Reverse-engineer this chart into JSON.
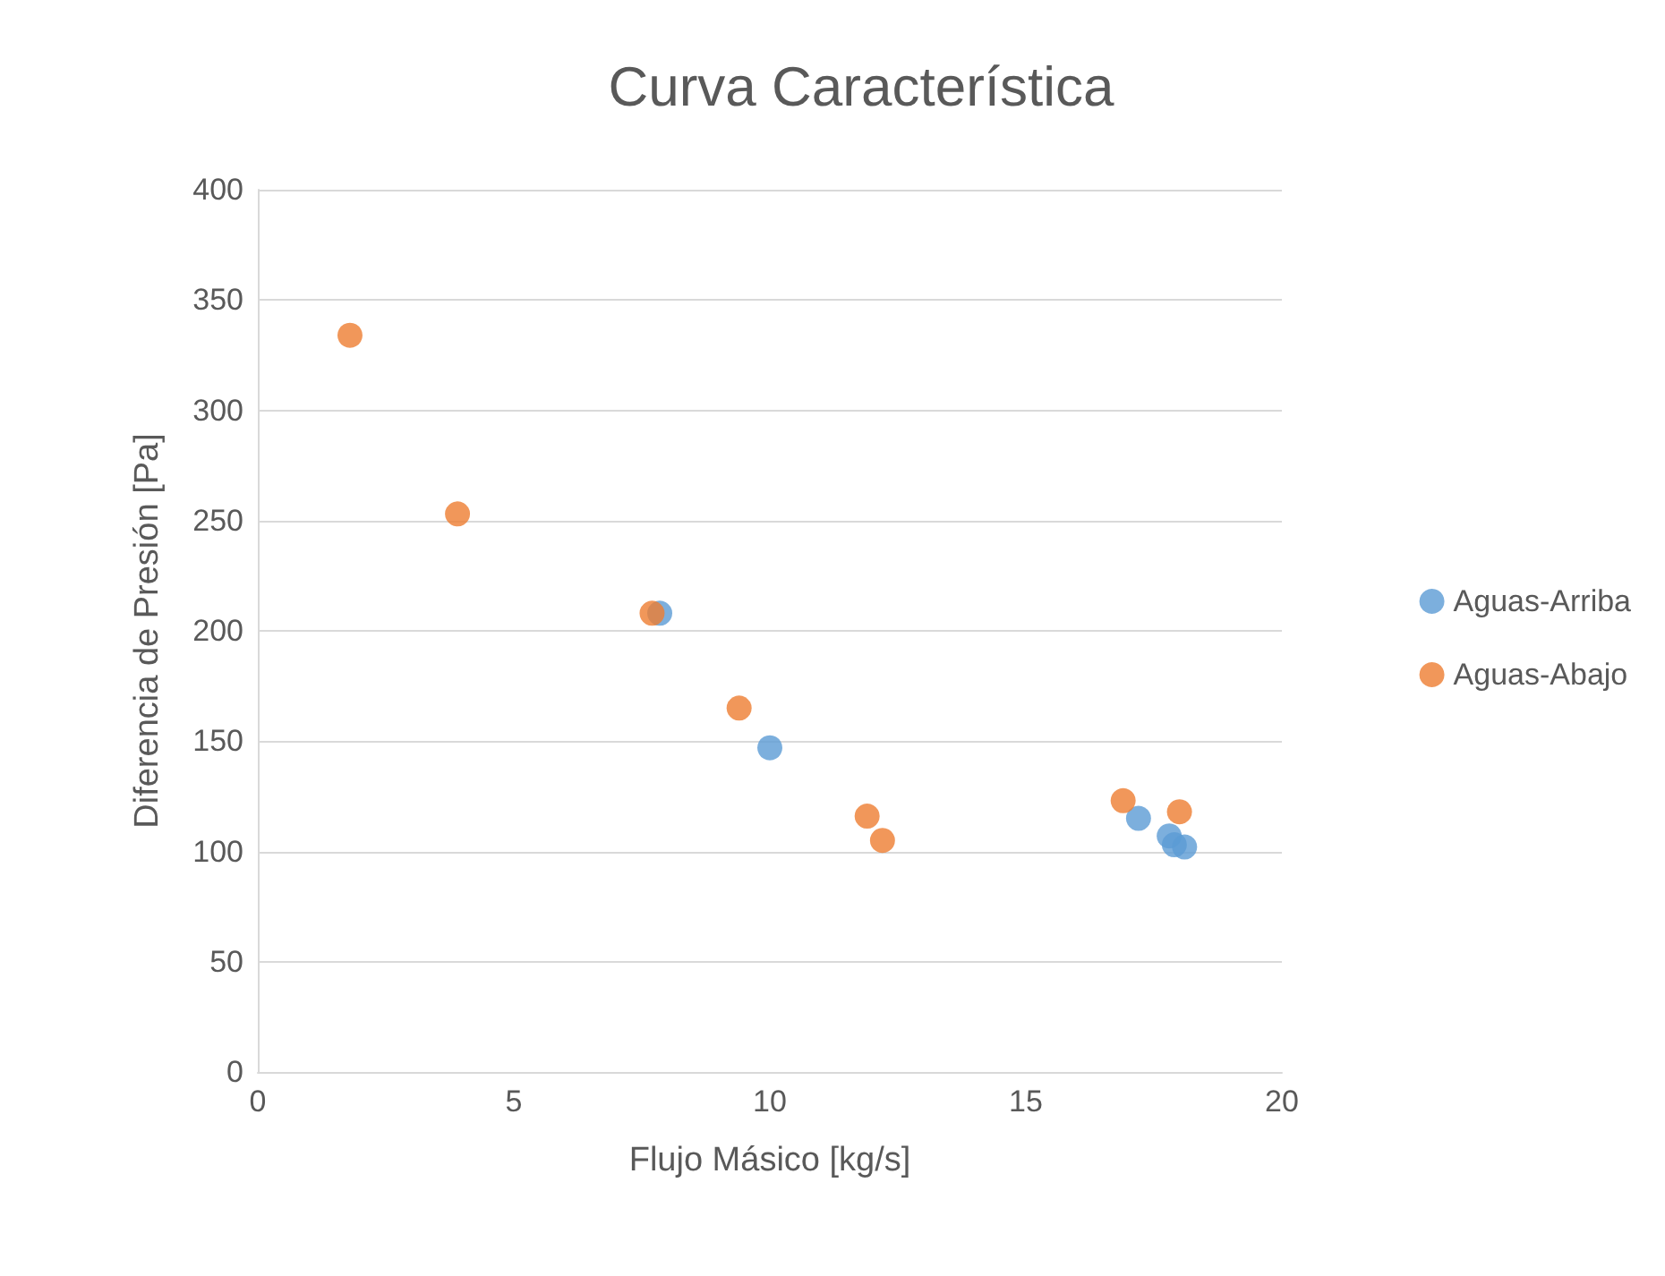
{
  "chart_data": {
    "type": "scatter",
    "title": "Curva Característica",
    "xlabel": "Flujo Másico [kg/s]",
    "ylabel": "Diferencia de Presión [Pa]",
    "xlim": [
      0,
      20
    ],
    "xticks": [
      0,
      5,
      10,
      15,
      20
    ],
    "ylim": [
      0,
      400
    ],
    "yticks": [
      0,
      50,
      100,
      150,
      200,
      250,
      300,
      350,
      400
    ],
    "grid": "y",
    "legend": "right",
    "marker": "circle",
    "series": [
      {
        "name": "Aguas-Arriba",
        "color": "#5b9bd5",
        "x": [
          7.85,
          10.0,
          17.2,
          17.8,
          17.9,
          18.1
        ],
        "values": [
          208,
          147,
          115,
          107,
          103,
          102
        ]
      },
      {
        "name": "Aguas-Abajo",
        "color": "#ed7d31",
        "x": [
          1.8,
          3.9,
          7.7,
          9.4,
          11.9,
          12.2,
          16.9,
          18.0
        ],
        "values": [
          334,
          253,
          208,
          165,
          116,
          105,
          123,
          118
        ]
      }
    ]
  }
}
